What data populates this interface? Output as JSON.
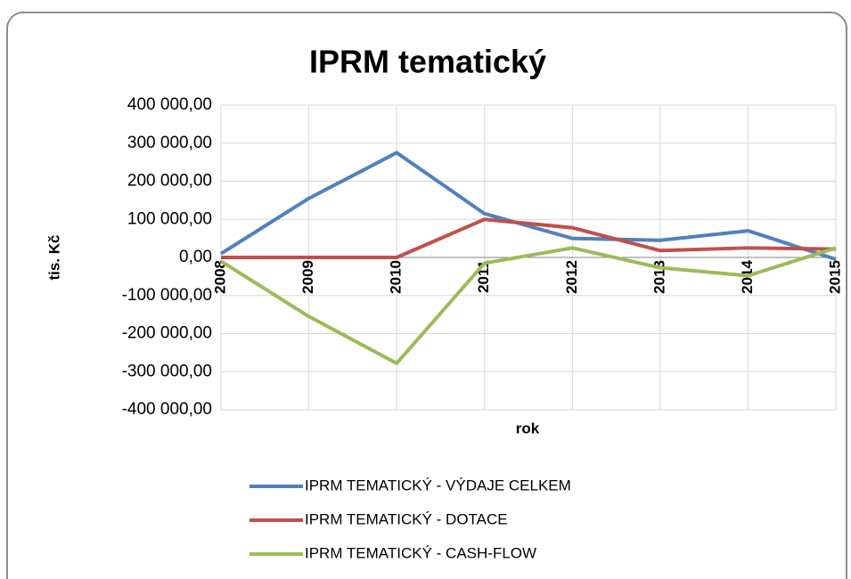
{
  "chart_data": {
    "type": "line",
    "title": "IPRM tematický",
    "ylabel": "tis. Kč",
    "xlabel": "rok",
    "categories": [
      "2008",
      "2009",
      "2010",
      "2011",
      "2012",
      "2013",
      "2014",
      "2015"
    ],
    "series": [
      {
        "name": "IPRM TEMATICKÝ - VÝDAJE CELKEM",
        "color": "#4f81bd",
        "values": [
          10000,
          155000,
          275000,
          115000,
          50000,
          45000,
          70000,
          -5000
        ]
      },
      {
        "name": "IPRM TEMATICKÝ - DOTACE",
        "color": "#c0504d",
        "values": [
          0,
          0,
          0,
          100000,
          78000,
          18000,
          25000,
          22000
        ]
      },
      {
        "name": "IPRM TEMATICKÝ - CASH-FLOW",
        "color": "#9bbb59",
        "values": [
          -10000,
          -155000,
          -278000,
          -15000,
          25000,
          -27000,
          -48000,
          25000
        ]
      }
    ],
    "ylim": [
      -400000,
      400000
    ],
    "yticks": [
      {
        "value": 400000,
        "label": "400 000,00"
      },
      {
        "value": 300000,
        "label": "300 000,00"
      },
      {
        "value": 200000,
        "label": "200 000,00"
      },
      {
        "value": 100000,
        "label": "100 000,00"
      },
      {
        "value": 0,
        "label": "0,00"
      },
      {
        "value": -100000,
        "label": "-100 000,00"
      },
      {
        "value": -200000,
        "label": "-200 000,00"
      },
      {
        "value": -300000,
        "label": "-300 000,00"
      },
      {
        "value": -400000,
        "label": "-400 000,00"
      }
    ],
    "grid": true,
    "legend": "bottom"
  }
}
